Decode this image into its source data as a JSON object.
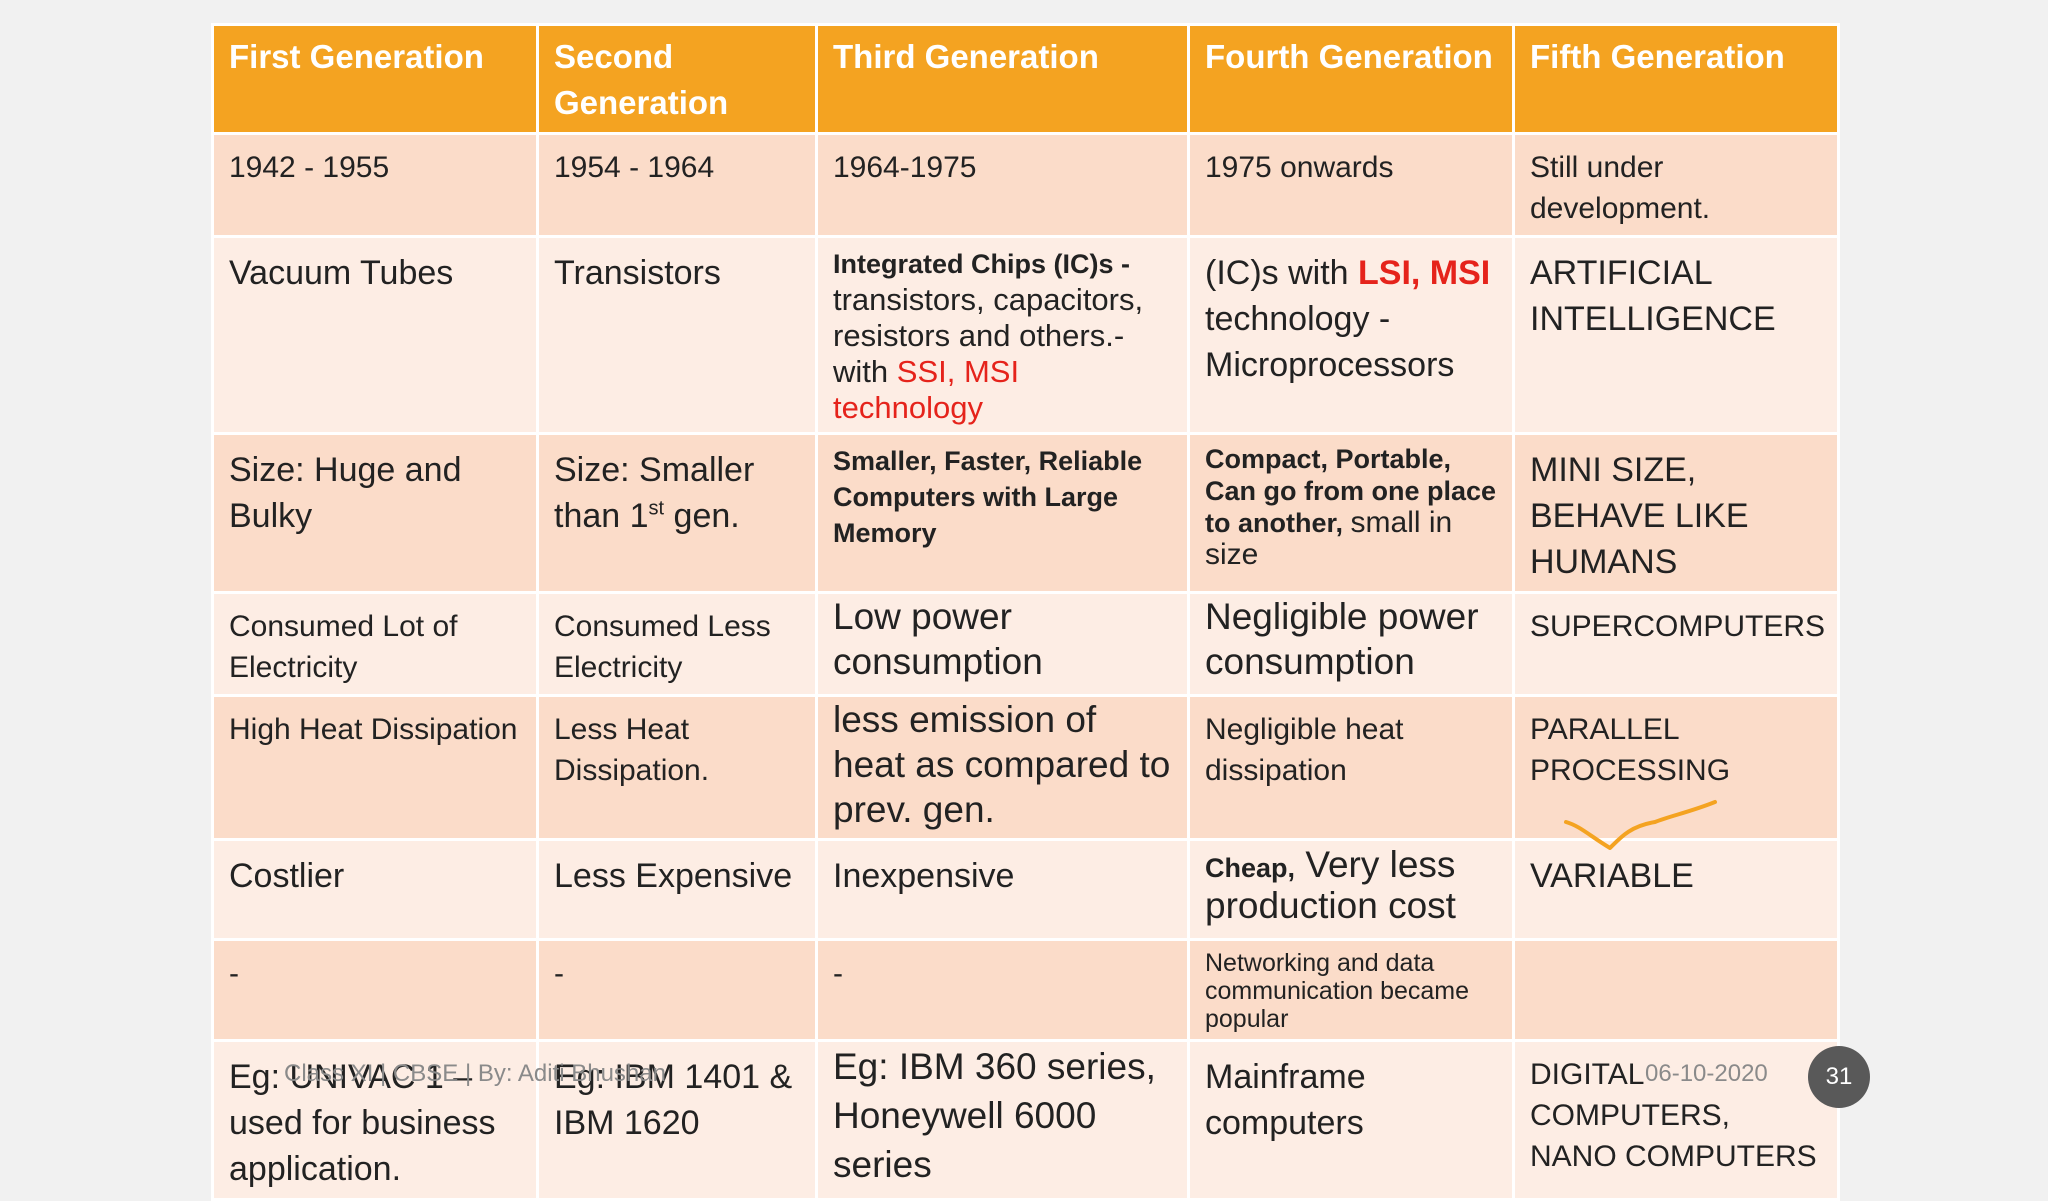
{
  "headers": [
    "First Generation",
    "Second Generation",
    "Third Generation",
    "Fourth Generation",
    "Fifth Generation"
  ],
  "rows": {
    "period": [
      "1942 - 1955",
      "1954 - 1964",
      "1964-1975",
      "1975 onwards",
      "Still under development."
    ],
    "technology": {
      "gen1": "Vacuum Tubes",
      "gen2": "Transistors",
      "gen3_bold": "Integrated Chips (IC)s -",
      "gen3_text": "transistors, capacitors, resistors and others.- with",
      "gen3_red": "SSI, MSI technology",
      "gen4_pre": "(IC)s with",
      "gen4_red": "LSI, MSI",
      "gen4_post": "technology - Microprocessors",
      "gen5": "ARTIFICIAL INTELLIGENCE"
    },
    "size": {
      "gen1": "Size: Huge and Bulky",
      "gen2_pre": "Size: Smaller than 1",
      "gen2_sup": "st",
      "gen2_post": "gen.",
      "gen3": "Smaller, Faster, Reliable Computers with Large Memory",
      "gen4_bold": "Compact, Portable, Can go from one place to another,",
      "gen4_normal": "small in size",
      "gen5": "MINI SIZE, BEHAVE LIKE HUMANS"
    },
    "power": [
      "Consumed Lot of Electricity",
      "Consumed Less Electricity",
      "Low power consumption",
      "Negligible power consumption",
      "SUPERCOMPUTERS"
    ],
    "heat": [
      "High Heat Dissipation",
      "Less Heat Dissipation.",
      "less emission of heat as compared to prev. gen.",
      "Negligible heat dissipation",
      "PARALLEL PROCESSING"
    ],
    "cost": {
      "gen1": "Costlier",
      "gen2": "Less Expensive",
      "gen3": "Inexpensive",
      "gen4_bold": "Cheap,",
      "gen4_normal": "Very less production cost",
      "gen5": "VARIABLE"
    },
    "network": [
      "-",
      "-",
      "-",
      "Networking and data communication became popular",
      ""
    ],
    "examples": [
      "Eg: UNIVAC 1 – used for business application.",
      "Eg: IBM 1401 & IBM 1620",
      "Eg: IBM 360 series, Honeywell 6000 series",
      "Mainframe computers",
      "DIGITAL COMPUTERS, NANO COMPUTERS"
    ]
  },
  "footer": {
    "credit": "Class XI | CBSE | By: Aditi Bhushan",
    "date": "06-10-2020",
    "page_number": "31"
  },
  "colors": {
    "header_bg": "#f4a321",
    "row_dark": "#fbdcc9",
    "row_light": "#fdede4",
    "accent_red": "#e5231b",
    "annotation": "#f4a321"
  }
}
